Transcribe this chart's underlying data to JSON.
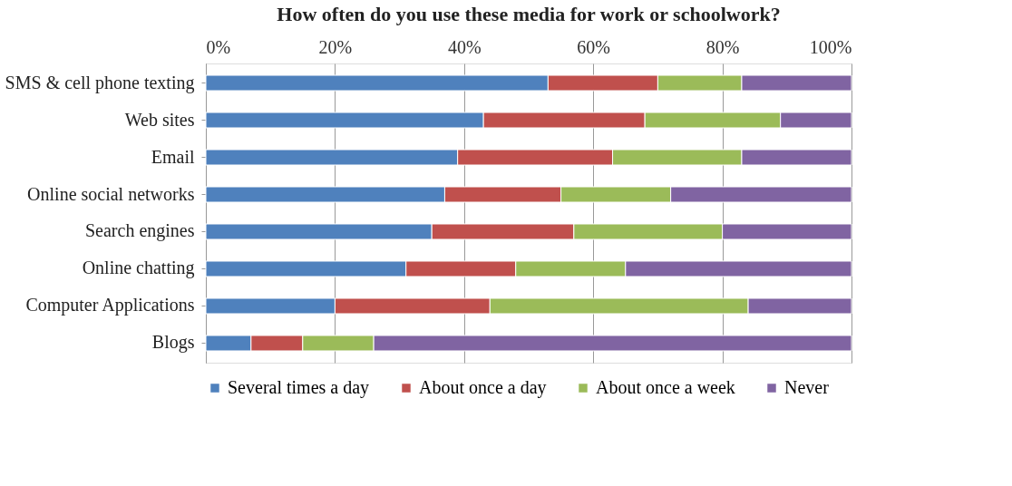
{
  "chart_data": {
    "type": "bar",
    "orientation": "horizontal",
    "stacked": true,
    "title": "How often do you use these media for work or schoolwork?",
    "categories": [
      "SMS & cell phone texting",
      "Web sites",
      "Email",
      "Online social networks",
      "Search engines",
      "Online chatting",
      "Computer Applications",
      "Blogs"
    ],
    "series": [
      {
        "name": "Several times a day",
        "color": "#4f81bd",
        "values": [
          53,
          43,
          39,
          37,
          35,
          31,
          20,
          7
        ]
      },
      {
        "name": "About once a day",
        "color": "#c0504d",
        "values": [
          17,
          25,
          24,
          18,
          22,
          17,
          24,
          8
        ]
      },
      {
        "name": "About once a week",
        "color": "#9bbb59",
        "values": [
          13,
          21,
          20,
          17,
          23,
          17,
          40,
          11
        ]
      },
      {
        "name": "Never",
        "color": "#8064a2",
        "values": [
          17,
          11,
          17,
          28,
          20,
          35,
          16,
          74
        ]
      }
    ],
    "xlim": [
      0,
      100
    ],
    "xticks": [
      {
        "value": 0,
        "label": "0%"
      },
      {
        "value": 20,
        "label": "20%"
      },
      {
        "value": 40,
        "label": "40%"
      },
      {
        "value": 60,
        "label": "60%"
      },
      {
        "value": 80,
        "label": "80%"
      },
      {
        "value": 100,
        "label": "100%"
      }
    ],
    "grid": "x",
    "legend": "bottom"
  }
}
